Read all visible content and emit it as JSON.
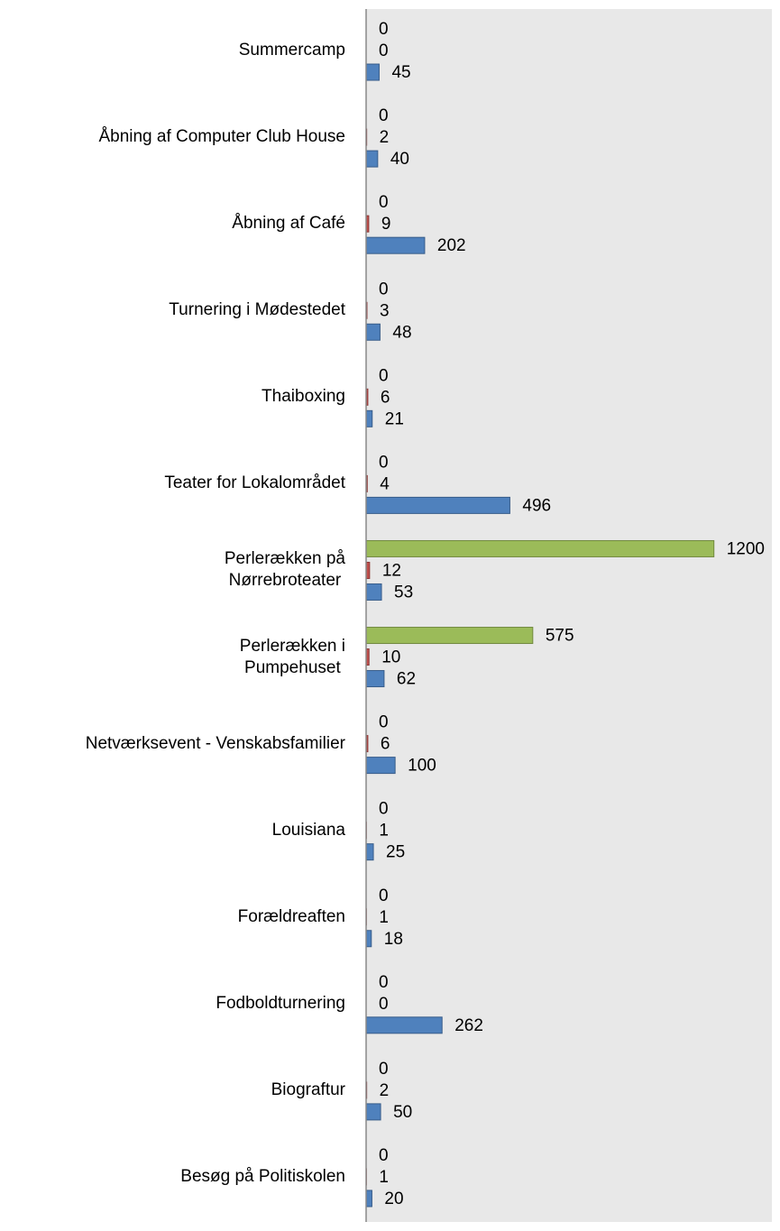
{
  "chart_data": {
    "type": "bar",
    "orientation": "horizontal",
    "categories": [
      "Summercamp",
      "Åbning af Computer Club House",
      "Åbning af Café",
      "Turnering i Mødestedet",
      "Thaiboxing",
      "Teater for Lokalområdet",
      "Perlerækken på\nNørrebroteater",
      "Perlerækken i\nPumpehuset",
      "Netværksevent - Venskabsfamilier",
      "Louisiana",
      "Forældreaften",
      "Fodboldturnering",
      "Biograftur",
      "Besøg på Politiskolen"
    ],
    "series": [
      {
        "color": "#9bbb59",
        "values": [
          0,
          0,
          0,
          0,
          0,
          0,
          1200,
          575,
          0,
          0,
          0,
          0,
          0,
          0
        ]
      },
      {
        "color": "#c0504d",
        "values": [
          0,
          2,
          9,
          3,
          6,
          4,
          12,
          10,
          6,
          1,
          1,
          0,
          2,
          1
        ]
      },
      {
        "color": "#4f81bd",
        "values": [
          45,
          40,
          202,
          48,
          21,
          496,
          53,
          62,
          100,
          25,
          18,
          262,
          50,
          20
        ]
      }
    ],
    "xlim": [
      0,
      1400
    ]
  }
}
